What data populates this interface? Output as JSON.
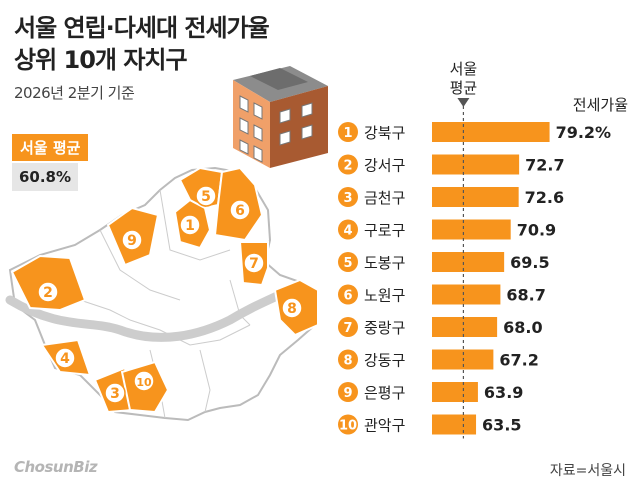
{
  "title_line1": "서울 연립·다세대 전세가율",
  "title_line2": "상위 10개 자치구",
  "subtitle": "2026년 2분기 기준",
  "average": {
    "label": "서울 평균",
    "value": "60.8%"
  },
  "seoul_avg_label_line1": "서울",
  "seoul_avg_label_line2": "평균",
  "logo_text": "ChosunBiz",
  "source": "자료=서울시",
  "colors": {
    "accent": "#f7941d",
    "avg_bg": "#e6e6e6",
    "map_fill": "#ffffff",
    "map_line": "#bbbbbb",
    "line": "#555555"
  },
  "chart_data": {
    "type": "bar",
    "orientation": "horizontal",
    "title": "서울 연립·다세대 전세가율 상위 10개 자치구",
    "ylabel": "전세가율",
    "ranks": [
      "1",
      "2",
      "3",
      "4",
      "5",
      "6",
      "7",
      "8",
      "9",
      "10"
    ],
    "categories": [
      "강북구",
      "강서구",
      "금천구",
      "구로구",
      "도봉구",
      "노원구",
      "중랑구",
      "강동구",
      "은평구",
      "관악구"
    ],
    "values": [
      79.2,
      72.7,
      72.6,
      70.9,
      69.5,
      68.7,
      68.0,
      67.2,
      63.9,
      63.5
    ],
    "value_labels": [
      "79.2%",
      "72.7",
      "72.6",
      "70.9",
      "69.5",
      "68.7",
      "68.0",
      "67.2",
      "63.9",
      "63.5"
    ],
    "reference_line": 60.8,
    "grid": false
  },
  "map_markers": [
    "1",
    "2",
    "3",
    "4",
    "5",
    "6",
    "7",
    "8",
    "9",
    "10"
  ]
}
